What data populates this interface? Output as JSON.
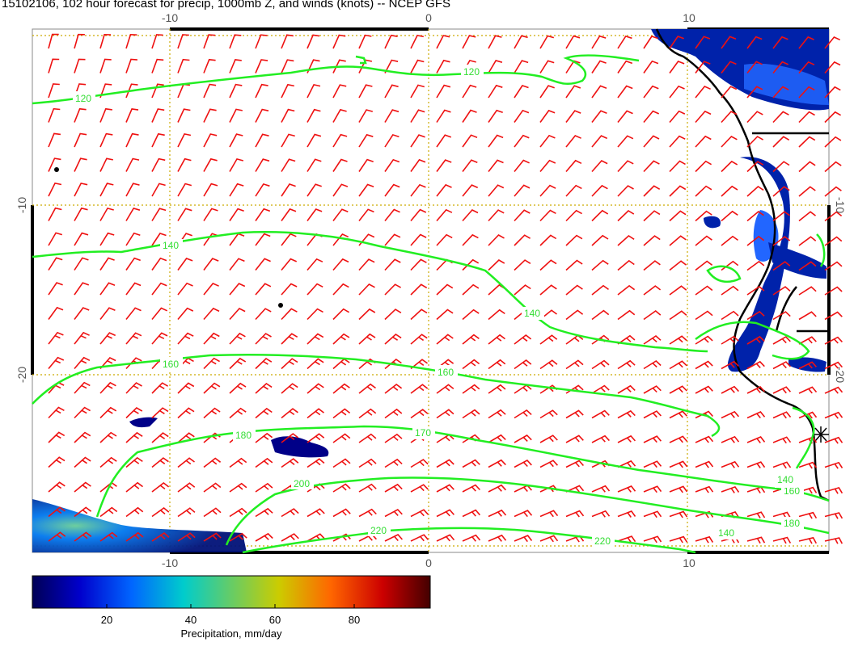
{
  "title": "15102106, 102 hour forecast for precip, 1000mb Z, and winds (knots) -- NCEP GFS",
  "map": {
    "lon_ticks": [
      "-10",
      "0",
      "10"
    ],
    "lat_ticks": [
      "-10",
      "-20"
    ],
    "contour_color": "#22ee22",
    "wind_barb_color": "#ee1111",
    "gridline_color": "#ccaa00",
    "contour_labels": [
      "120",
      "120",
      "140",
      "140",
      "160",
      "160",
      "170",
      "180",
      "200",
      "220",
      "220",
      "180",
      "160",
      "140",
      "140"
    ]
  },
  "colorbar": {
    "ticks": [
      "20",
      "40",
      "60",
      "80"
    ],
    "title": "Precipitation, mm/day",
    "colors": [
      "#000066",
      "#0000cc",
      "#0066ff",
      "#00cccc",
      "#66cc66",
      "#cccc00",
      "#ff6600",
      "#cc0000",
      "#550000"
    ]
  }
}
